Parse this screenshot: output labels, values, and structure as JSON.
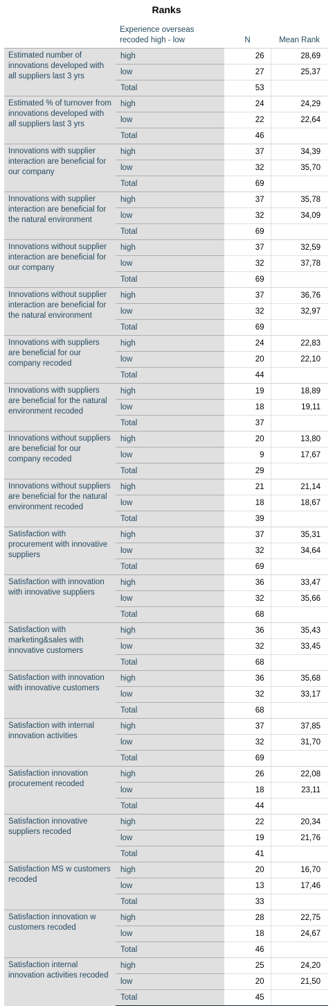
{
  "title": "Ranks",
  "header": {
    "group_col": "Experience overseas recoded high - low",
    "n_col": "N",
    "mean_rank_col": "Mean Rank"
  },
  "groups": [
    "high",
    "low",
    "Total"
  ],
  "rows": [
    {
      "variable": "Estimated number of innovations developed with all suppliers last 3 yrs",
      "values": [
        {
          "n": "26",
          "mr": "28,69"
        },
        {
          "n": "27",
          "mr": "25,37"
        },
        {
          "n": "53",
          "mr": ""
        }
      ]
    },
    {
      "variable": "Estimated % of turnover from innovations developed with all suppliers last 3 yrs",
      "values": [
        {
          "n": "24",
          "mr": "24,29"
        },
        {
          "n": "22",
          "mr": "22,64"
        },
        {
          "n": "46",
          "mr": ""
        }
      ]
    },
    {
      "variable": "Innovations with supplier interaction are beneficial for our company",
      "values": [
        {
          "n": "37",
          "mr": "34,39"
        },
        {
          "n": "32",
          "mr": "35,70"
        },
        {
          "n": "69",
          "mr": ""
        }
      ]
    },
    {
      "variable": "Innovations with supplier interaction are beneficial for the natural environment",
      "values": [
        {
          "n": "37",
          "mr": "35,78"
        },
        {
          "n": "32",
          "mr": "34,09"
        },
        {
          "n": "69",
          "mr": ""
        }
      ]
    },
    {
      "variable": "Innovations without supplier interaction are beneficial for our company",
      "values": [
        {
          "n": "37",
          "mr": "32,59"
        },
        {
          "n": "32",
          "mr": "37,78"
        },
        {
          "n": "69",
          "mr": ""
        }
      ]
    },
    {
      "variable": "Innovations without supplier interaction are beneficial for the natural environment",
      "values": [
        {
          "n": "37",
          "mr": "36,76"
        },
        {
          "n": "32",
          "mr": "32,97"
        },
        {
          "n": "69",
          "mr": ""
        }
      ]
    },
    {
      "variable": "Innovations with suppliers are beneficial for our company recoded",
      "values": [
        {
          "n": "24",
          "mr": "22,83"
        },
        {
          "n": "20",
          "mr": "22,10"
        },
        {
          "n": "44",
          "mr": ""
        }
      ]
    },
    {
      "variable": "Innovations with suppliers are beneficial for the natural environment recoded",
      "values": [
        {
          "n": "19",
          "mr": "18,89"
        },
        {
          "n": "18",
          "mr": "19,11"
        },
        {
          "n": "37",
          "mr": ""
        }
      ]
    },
    {
      "variable": "Innovations without suppliers are beneficial for our company recoded",
      "values": [
        {
          "n": "20",
          "mr": "13,80"
        },
        {
          "n": "9",
          "mr": "17,67"
        },
        {
          "n": "29",
          "mr": ""
        }
      ]
    },
    {
      "variable": "Innovations without suppliers are beneficial for the natural environment recoded",
      "values": [
        {
          "n": "21",
          "mr": "21,14"
        },
        {
          "n": "18",
          "mr": "18,67"
        },
        {
          "n": "39",
          "mr": ""
        }
      ]
    },
    {
      "variable": "Satisfaction with procurement with innovative suppliers",
      "values": [
        {
          "n": "37",
          "mr": "35,31"
        },
        {
          "n": "32",
          "mr": "34,64"
        },
        {
          "n": "69",
          "mr": ""
        }
      ]
    },
    {
      "variable": "Satisfaction with innovation with innovative suppliers",
      "values": [
        {
          "n": "36",
          "mr": "33,47"
        },
        {
          "n": "32",
          "mr": "35,66"
        },
        {
          "n": "68",
          "mr": ""
        }
      ]
    },
    {
      "variable": "Satisfaction with marketing&sales with innovative customers",
      "values": [
        {
          "n": "36",
          "mr": "35,43"
        },
        {
          "n": "32",
          "mr": "33,45"
        },
        {
          "n": "68",
          "mr": ""
        }
      ]
    },
    {
      "variable": "Satisfaction with innovation with innovative customers",
      "values": [
        {
          "n": "36",
          "mr": "35,68"
        },
        {
          "n": "32",
          "mr": "33,17"
        },
        {
          "n": "68",
          "mr": ""
        }
      ]
    },
    {
      "variable": "Satisfaction with internal innovation activities",
      "values": [
        {
          "n": "37",
          "mr": "37,85"
        },
        {
          "n": "32",
          "mr": "31,70"
        },
        {
          "n": "69",
          "mr": ""
        }
      ]
    },
    {
      "variable": "Satisfaction innovation procurement recoded",
      "values": [
        {
          "n": "26",
          "mr": "22,08"
        },
        {
          "n": "18",
          "mr": "23,11"
        },
        {
          "n": "44",
          "mr": ""
        }
      ]
    },
    {
      "variable": "Satisfaction innovative suppliers recoded",
      "values": [
        {
          "n": "22",
          "mr": "20,34"
        },
        {
          "n": "19",
          "mr": "21,76"
        },
        {
          "n": "41",
          "mr": ""
        }
      ]
    },
    {
      "variable": "Satisfaction MS w customers recoded",
      "values": [
        {
          "n": "20",
          "mr": "16,70"
        },
        {
          "n": "13",
          "mr": "17,46"
        },
        {
          "n": "33",
          "mr": ""
        }
      ]
    },
    {
      "variable": "Satisfaction innovation w customers recoded",
      "values": [
        {
          "n": "28",
          "mr": "22,75"
        },
        {
          "n": "18",
          "mr": "24,67"
        },
        {
          "n": "46",
          "mr": ""
        }
      ]
    },
    {
      "variable": "Satisfaction internal innovation activities recoded",
      "values": [
        {
          "n": "25",
          "mr": "24,20"
        },
        {
          "n": "20",
          "mr": "21,50"
        },
        {
          "n": "45",
          "mr": ""
        }
      ]
    }
  ]
}
